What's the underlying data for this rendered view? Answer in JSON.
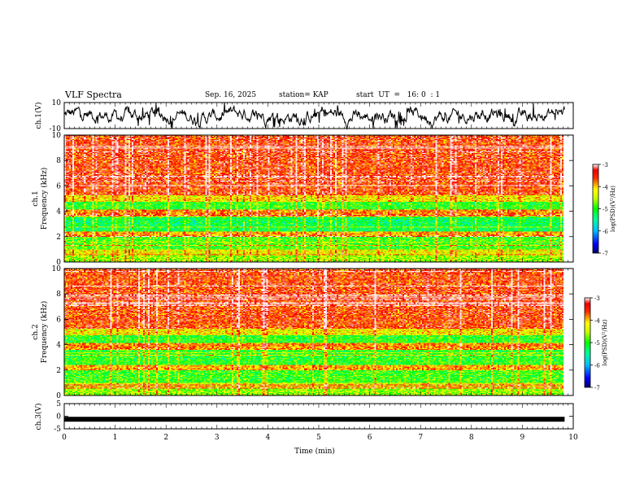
{
  "header": {
    "title": "VLF Spectra",
    "date": "Sep. 16, 2025",
    "station": "station= KAP",
    "start": "start  UT  =   16: 0  : 1"
  },
  "chart_data": [
    {
      "type": "line",
      "id": "ch1_wave",
      "ylabel": "ch.1(V)",
      "ylim": [
        -10,
        10
      ],
      "yticks": [
        "10",
        "-10"
      ],
      "xlim": [
        0,
        10
      ],
      "series_description_values": {
        "mean": 0,
        "amplitude_range": [
          -10,
          10
        ]
      }
    },
    {
      "type": "heatmap",
      "id": "ch1_spec",
      "ylabel": "ch.1\nFrequency (kHz)",
      "ylabel_line1": "ch.1",
      "ylabel_line2": "Frequency (kHz)",
      "ylim": [
        0,
        10
      ],
      "yticks": [
        "0",
        "2",
        "4",
        "6",
        "8",
        "10"
      ],
      "xlim": [
        0,
        10
      ],
      "colorbar": {
        "label": "log(PSD)(V²/Hz)",
        "range": [
          -7,
          -3
        ],
        "ticks": [
          "-3",
          "-4",
          "-5",
          "-6",
          "-7"
        ]
      }
    },
    {
      "type": "heatmap",
      "id": "ch2_spec",
      "ylabel_line1": "ch.2",
      "ylabel_line2": "Frequency (kHz)",
      "ylim": [
        0,
        10
      ],
      "yticks": [
        "0",
        "2",
        "4",
        "6",
        "8",
        "10"
      ],
      "xlim": [
        0,
        10
      ],
      "colorbar": {
        "label": "log(PSD)(V²/Hz)",
        "range": [
          -7,
          -3
        ],
        "ticks": [
          "-3",
          "-4",
          "-5",
          "-6",
          "-7"
        ]
      }
    },
    {
      "type": "line",
      "id": "ch3_wave",
      "ylabel": "ch.3(V)",
      "ylim": [
        -5,
        5
      ],
      "yticks": [
        "5",
        "0",
        "-5"
      ],
      "xlim": [
        0,
        10
      ],
      "level": -1.2
    }
  ],
  "xaxis": {
    "label": "Time (min)",
    "ticks": [
      "0",
      "1",
      "2",
      "3",
      "4",
      "5",
      "6",
      "7",
      "8",
      "9",
      "10"
    ],
    "data_end": 9.83
  }
}
